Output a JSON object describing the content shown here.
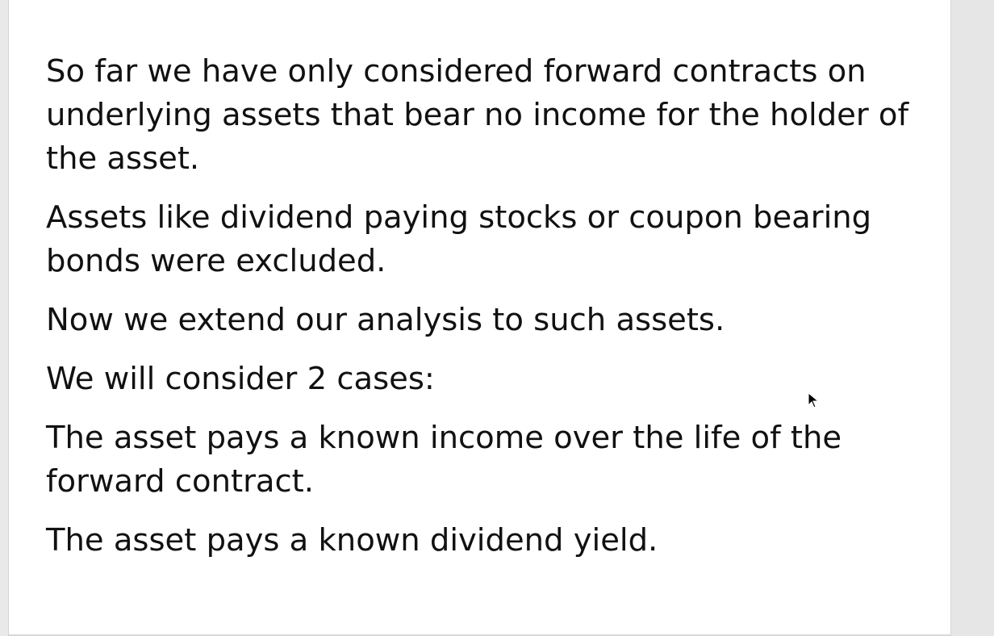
{
  "slide": {
    "paragraphs": [
      "So far we have only considered forward contracts on\nunderlying assets that bear no income for the holder of\nthe asset.",
      "Assets like dividend paying stocks or coupon bearing\nbonds were excluded.",
      "Now we extend our analysis to such assets.",
      "We will consider 2 cases:",
      "The asset pays a known income over the life of the\nforward contract.",
      "The asset pays a known dividend yield."
    ]
  },
  "icons": {
    "cursor": "mouse-pointer-icon"
  },
  "colors": {
    "text": "#111111",
    "slide_background": "#ffffff",
    "gutter": "#e6e6e6"
  }
}
